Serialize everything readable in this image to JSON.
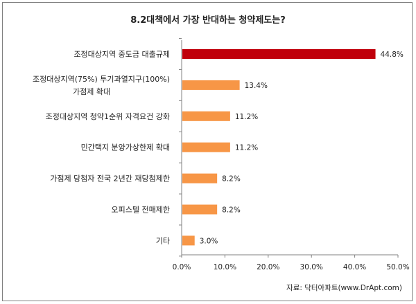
{
  "chart_data": {
    "type": "bar",
    "orientation": "horizontal",
    "title": "8.2대책에서 가장 반대하는 청약제도는?",
    "categories": [
      [
        "조정대상지역 중도금 대출규제"
      ],
      [
        "조정대상지역(75%) 투기과열지구(100%)",
        "가점제 확대"
      ],
      [
        "조정대상지역 청약1순위 자격요건 강화"
      ],
      [
        "민간택지 분양가상한제 확대"
      ],
      [
        "가점제 당첨자 전국 2년간 재당첨제한"
      ],
      [
        "오피스텔 전매제한"
      ],
      [
        "기타"
      ]
    ],
    "values": [
      44.8,
      13.4,
      11.2,
      11.2,
      8.2,
      8.2,
      3.0
    ],
    "value_labels": [
      "44.8%",
      "13.4%",
      "11.2%",
      "11.2%",
      "8.2%",
      "8.2%",
      "3.0%"
    ],
    "bar_colors": [
      "#c0000b",
      "#f79646",
      "#f79646",
      "#f79646",
      "#f79646",
      "#f79646",
      "#f79646"
    ],
    "xlim": [
      0,
      50
    ],
    "x_ticks": [
      "0.0%",
      "10.0%",
      "20.0%",
      "30.0%",
      "40.0%",
      "50.0%"
    ],
    "grid": false,
    "source": "자료: 닥터아파트(www.DrApt.com)"
  }
}
